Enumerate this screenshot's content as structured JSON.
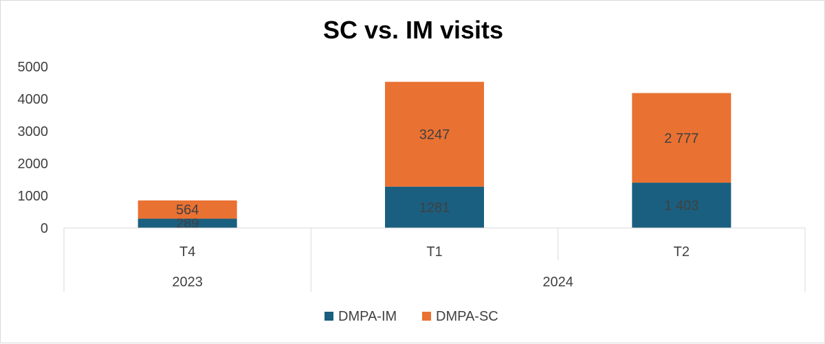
{
  "chart_data": {
    "type": "bar",
    "stacked": true,
    "title": "SC vs. IM visits",
    "xlabel": "",
    "ylabel": "",
    "ylim": [
      0,
      5000
    ],
    "yticks": [
      "0",
      "1000",
      "2000",
      "3000",
      "4000",
      "5000"
    ],
    "grid": false,
    "legend_position": "bottom",
    "categories": [
      "T4",
      "T1",
      "T2"
    ],
    "groups": [
      {
        "label": "2023",
        "categories": [
          "T4"
        ]
      },
      {
        "label": "2024",
        "categories": [
          "T1",
          "T2"
        ]
      }
    ],
    "series": [
      {
        "name": "DMPA-IM",
        "color": "#1a5f7f",
        "values": [
          289,
          1281,
          1403
        ],
        "labels": [
          "289",
          "1281",
          "1 403"
        ]
      },
      {
        "name": "DMPA-SC",
        "color": "#e97132",
        "values": [
          564,
          3247,
          2777
        ],
        "labels": [
          "564",
          "3247",
          "2 777"
        ]
      }
    ]
  }
}
